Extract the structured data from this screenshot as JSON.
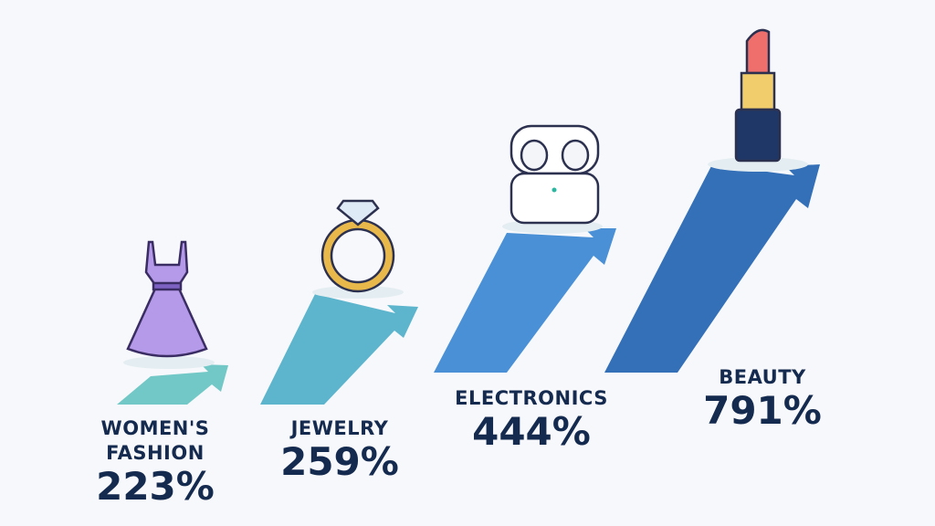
{
  "items": [
    {
      "label": "WOMEN'S FASHION",
      "value": "223%"
    },
    {
      "label": "JEWELRY",
      "value": "259%"
    },
    {
      "label": "ELECTRONICS",
      "value": "444%"
    },
    {
      "label": "BEAUTY",
      "value": "791%"
    }
  ]
}
